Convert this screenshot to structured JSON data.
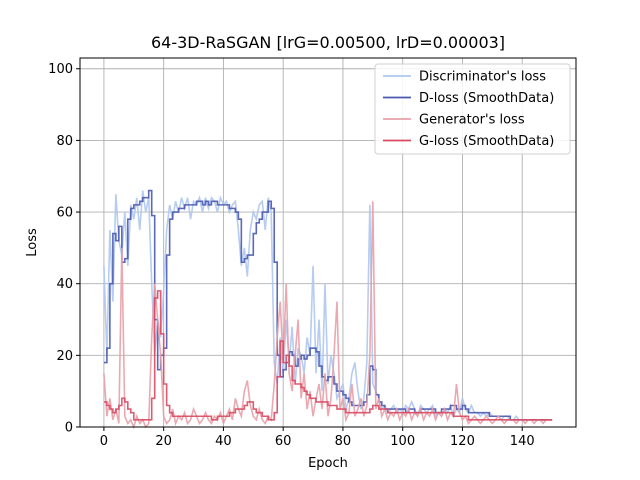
{
  "chart_data": {
    "type": "line",
    "title": "64-3D-RaSGAN [lrG=0.00500, lrD=0.00003]",
    "xlabel": "Epoch",
    "ylabel": "Loss",
    "xlim": [
      -8,
      158
    ],
    "ylim": [
      0,
      103
    ],
    "xticks": [
      0,
      20,
      40,
      60,
      80,
      100,
      120,
      140
    ],
    "yticks": [
      0,
      20,
      40,
      60,
      80,
      100
    ],
    "grid": true,
    "legend_position": "top-right",
    "series": [
      {
        "name": "Discriminator's loss",
        "color": "#aec7f0",
        "width": 1.6,
        "x": [
          0,
          1,
          2,
          3,
          4,
          5,
          6,
          7,
          8,
          9,
          10,
          11,
          12,
          13,
          14,
          15,
          16,
          17,
          18,
          19,
          20,
          21,
          22,
          23,
          24,
          25,
          26,
          27,
          28,
          29,
          30,
          31,
          32,
          33,
          34,
          35,
          36,
          37,
          38,
          39,
          40,
          41,
          42,
          43,
          44,
          45,
          46,
          47,
          48,
          49,
          50,
          51,
          52,
          53,
          54,
          55,
          56,
          57,
          58,
          59,
          60,
          61,
          62,
          63,
          64,
          65,
          66,
          67,
          68,
          69,
          70,
          71,
          72,
          73,
          74,
          75,
          76,
          77,
          78,
          79,
          80,
          81,
          82,
          83,
          84,
          85,
          86,
          87,
          88,
          89,
          90,
          91,
          92,
          93,
          94,
          95,
          96,
          97,
          98,
          99,
          100,
          101,
          102,
          103,
          104,
          105,
          106,
          107,
          108,
          109,
          110,
          111,
          112,
          113,
          114,
          115,
          116,
          117,
          118,
          119,
          120,
          121,
          122,
          123,
          124,
          125,
          126,
          127,
          128,
          129,
          130,
          131,
          132,
          133,
          134,
          135,
          136,
          137,
          138,
          139,
          140,
          141,
          142,
          143,
          144,
          145,
          146,
          147,
          148,
          149,
          150
        ],
        "y": [
          45,
          20,
          55,
          35,
          65,
          52,
          48,
          60,
          45,
          62,
          58,
          64,
          55,
          66,
          60,
          64,
          40,
          20,
          30,
          25,
          38,
          55,
          62,
          58,
          63,
          60,
          64,
          61,
          64,
          58,
          63,
          62,
          64,
          60,
          64,
          61,
          64,
          63,
          60,
          64,
          62,
          63,
          60,
          62,
          63,
          55,
          45,
          50,
          42,
          55,
          60,
          58,
          62,
          63,
          55,
          64,
          60,
          18,
          12,
          25,
          15,
          30,
          18,
          28,
          12,
          22,
          20,
          15,
          25,
          20,
          45,
          15,
          30,
          10,
          40,
          12,
          20,
          15,
          8,
          10,
          12,
          5,
          8,
          15,
          18,
          10,
          5,
          8,
          18,
          62,
          12,
          10,
          8,
          5,
          6,
          4,
          5,
          6,
          4,
          5,
          4,
          6,
          5,
          7,
          5,
          3,
          6,
          5,
          4,
          5,
          6,
          3,
          4,
          3,
          5,
          4,
          6,
          3,
          5,
          4,
          8,
          5,
          4,
          6,
          4,
          4,
          3,
          4,
          3,
          4,
          3,
          3,
          3,
          2,
          3,
          3,
          2,
          2,
          3,
          2,
          2,
          2,
          2,
          2,
          2,
          2,
          2,
          2,
          2,
          2,
          2
        ]
      },
      {
        "name": "D-loss (SmoothData)",
        "color": "#4a59b0",
        "width": 1.6,
        "step": true,
        "x": [
          0,
          1,
          2,
          3,
          4,
          5,
          6,
          7,
          8,
          9,
          10,
          11,
          12,
          13,
          14,
          15,
          16,
          17,
          18,
          19,
          20,
          21,
          22,
          23,
          24,
          25,
          26,
          27,
          28,
          29,
          30,
          31,
          32,
          33,
          34,
          35,
          36,
          37,
          38,
          39,
          40,
          41,
          42,
          43,
          44,
          45,
          46,
          47,
          48,
          49,
          50,
          51,
          52,
          53,
          54,
          55,
          56,
          57,
          58,
          59,
          60,
          61,
          62,
          63,
          64,
          65,
          66,
          67,
          68,
          69,
          70,
          71,
          72,
          73,
          74,
          75,
          76,
          77,
          78,
          79,
          80,
          81,
          82,
          83,
          84,
          85,
          86,
          87,
          88,
          89,
          90,
          91,
          92,
          93,
          94,
          95,
          96,
          97,
          98,
          99,
          100,
          101,
          102,
          103,
          104,
          105,
          106,
          107,
          108,
          109,
          110,
          111,
          112,
          113,
          114,
          115,
          116,
          117,
          118,
          119,
          120,
          121,
          122,
          123,
          124,
          125,
          126,
          127,
          128,
          129,
          130,
          131,
          132,
          133,
          134,
          135,
          136,
          137,
          138,
          139,
          140,
          141,
          142,
          143,
          144,
          145,
          146,
          147,
          148,
          149,
          150
        ],
        "y": [
          18,
          22,
          40,
          54,
          52,
          56,
          46,
          47,
          58,
          61,
          62,
          62,
          63,
          64,
          64,
          66,
          59,
          30,
          16,
          20,
          22,
          48,
          58,
          60,
          60,
          61,
          61,
          62,
          62,
          62,
          62,
          63,
          63,
          62,
          63,
          62,
          63,
          63,
          62,
          62,
          62,
          62,
          61,
          61,
          60,
          58,
          46,
          47,
          48,
          48,
          54,
          57,
          58,
          60,
          60,
          63,
          61,
          46,
          20,
          14,
          16,
          18,
          21,
          20,
          17,
          19,
          20,
          19,
          20,
          22,
          22,
          21,
          17,
          14,
          13,
          14,
          14,
          12,
          10,
          10,
          9,
          8,
          7,
          6,
          6,
          6,
          6,
          7,
          9,
          17,
          16,
          9,
          7,
          6,
          5,
          5,
          5,
          5,
          5,
          5,
          5,
          4,
          5,
          5,
          4,
          4,
          5,
          5,
          5,
          5,
          5,
          4,
          4,
          5,
          5,
          5,
          6,
          6,
          5,
          5,
          6,
          5,
          4,
          4,
          4,
          4,
          4,
          4,
          4,
          3,
          3,
          3,
          3,
          3,
          3,
          3,
          2,
          2,
          2,
          2,
          2,
          2,
          2,
          2,
          2,
          2,
          2,
          2,
          2,
          2,
          2
        ]
      },
      {
        "name": "Generator's loss",
        "color": "#e8a0a8",
        "width": 1.6,
        "x": [
          0,
          1,
          2,
          3,
          4,
          5,
          6,
          7,
          8,
          9,
          10,
          11,
          12,
          13,
          14,
          15,
          16,
          17,
          18,
          19,
          20,
          21,
          22,
          23,
          24,
          25,
          26,
          27,
          28,
          29,
          30,
          31,
          32,
          33,
          34,
          35,
          36,
          37,
          38,
          39,
          40,
          41,
          42,
          43,
          44,
          45,
          46,
          47,
          48,
          49,
          50,
          51,
          52,
          53,
          54,
          55,
          56,
          57,
          58,
          59,
          60,
          61,
          62,
          63,
          64,
          65,
          66,
          67,
          68,
          69,
          70,
          71,
          72,
          73,
          74,
          75,
          76,
          77,
          78,
          79,
          80,
          81,
          82,
          83,
          84,
          85,
          86,
          87,
          88,
          89,
          90,
          91,
          92,
          93,
          94,
          95,
          96,
          97,
          98,
          99,
          100,
          101,
          102,
          103,
          104,
          105,
          106,
          107,
          108,
          109,
          110,
          111,
          112,
          113,
          114,
          115,
          116,
          117,
          118,
          119,
          120,
          121,
          122,
          123,
          124,
          125,
          126,
          127,
          128,
          129,
          130,
          131,
          132,
          133,
          134,
          135,
          136,
          137,
          138,
          139,
          140,
          141,
          142,
          143,
          144,
          145,
          146,
          147,
          148,
          149,
          150
        ],
        "y": [
          15,
          3,
          8,
          2,
          5,
          1,
          50,
          3,
          1,
          2,
          0,
          3,
          1,
          2,
          0,
          1,
          25,
          40,
          30,
          20,
          3,
          1,
          2,
          5,
          1,
          3,
          2,
          4,
          1,
          2,
          5,
          3,
          1,
          2,
          4,
          2,
          1,
          3,
          2,
          4,
          1,
          3,
          5,
          2,
          8,
          5,
          3,
          10,
          13,
          6,
          3,
          2,
          5,
          2,
          1,
          3,
          2,
          12,
          25,
          35,
          18,
          40,
          15,
          10,
          20,
          30,
          8,
          15,
          5,
          10,
          3,
          8,
          12,
          5,
          15,
          3,
          8,
          20,
          35,
          5,
          8,
          2,
          4,
          12,
          3,
          5,
          8,
          3,
          6,
          20,
          63,
          5,
          8,
          3,
          5,
          2,
          4,
          3,
          5,
          2,
          4,
          3,
          5,
          2,
          4,
          3,
          5,
          2,
          4,
          3,
          5,
          2,
          4,
          3,
          5,
          2,
          4,
          3,
          12,
          4,
          2,
          3,
          1,
          2,
          3,
          2,
          1,
          2,
          3,
          2,
          1,
          2,
          3,
          2,
          1,
          2,
          2,
          2,
          1,
          2,
          2,
          1,
          2,
          2,
          1,
          2,
          2,
          1,
          2,
          2,
          2
        ]
      },
      {
        "name": "G-loss (SmoothData)",
        "color": "#d94a62",
        "width": 1.6,
        "step": true,
        "x": [
          0,
          1,
          2,
          3,
          4,
          5,
          6,
          7,
          8,
          9,
          10,
          11,
          12,
          13,
          14,
          15,
          16,
          17,
          18,
          19,
          20,
          21,
          22,
          23,
          24,
          25,
          26,
          27,
          28,
          29,
          30,
          31,
          32,
          33,
          34,
          35,
          36,
          37,
          38,
          39,
          40,
          41,
          42,
          43,
          44,
          45,
          46,
          47,
          48,
          49,
          50,
          51,
          52,
          53,
          54,
          55,
          56,
          57,
          58,
          59,
          60,
          61,
          62,
          63,
          64,
          65,
          66,
          67,
          68,
          69,
          70,
          71,
          72,
          73,
          74,
          75,
          76,
          77,
          78,
          79,
          80,
          81,
          82,
          83,
          84,
          85,
          86,
          87,
          88,
          89,
          90,
          91,
          92,
          93,
          94,
          95,
          96,
          97,
          98,
          99,
          100,
          101,
          102,
          103,
          104,
          105,
          106,
          107,
          108,
          109,
          110,
          111,
          112,
          113,
          114,
          115,
          116,
          117,
          118,
          119,
          120,
          121,
          122,
          123,
          124,
          125,
          126,
          127,
          128,
          129,
          130,
          131,
          132,
          133,
          134,
          135,
          136,
          137,
          138,
          139,
          140,
          141,
          142,
          143,
          144,
          145,
          146,
          147,
          148,
          149,
          150
        ],
        "y": [
          7,
          6,
          5,
          4,
          5,
          6,
          8,
          7,
          5,
          4,
          2,
          2,
          2,
          2,
          2,
          2,
          8,
          36,
          38,
          26,
          12,
          6,
          4,
          3,
          3,
          3,
          3,
          3,
          3,
          3,
          3,
          3,
          3,
          3,
          3,
          3,
          2,
          2,
          3,
          3,
          3,
          3,
          4,
          4,
          5,
          5,
          5,
          6,
          7,
          7,
          5,
          4,
          4,
          3,
          3,
          2,
          2,
          4,
          14,
          24,
          18,
          20,
          17,
          13,
          12,
          12,
          11,
          10,
          9,
          8,
          8,
          7,
          7,
          7,
          7,
          6,
          6,
          6,
          5,
          5,
          5,
          4,
          4,
          4,
          4,
          4,
          4,
          4,
          4,
          5,
          6,
          6,
          5,
          5,
          5,
          4,
          4,
          4,
          4,
          4,
          4,
          4,
          4,
          4,
          4,
          4,
          4,
          4,
          4,
          4,
          4,
          4,
          4,
          4,
          4,
          4,
          4,
          3,
          3,
          3,
          3,
          3,
          2,
          2,
          2,
          2,
          2,
          2,
          2,
          2,
          2,
          2,
          2,
          2,
          2,
          2,
          2,
          2,
          2,
          2,
          2,
          2,
          2,
          2,
          2,
          2,
          2,
          2,
          2,
          2,
          2
        ]
      }
    ]
  }
}
